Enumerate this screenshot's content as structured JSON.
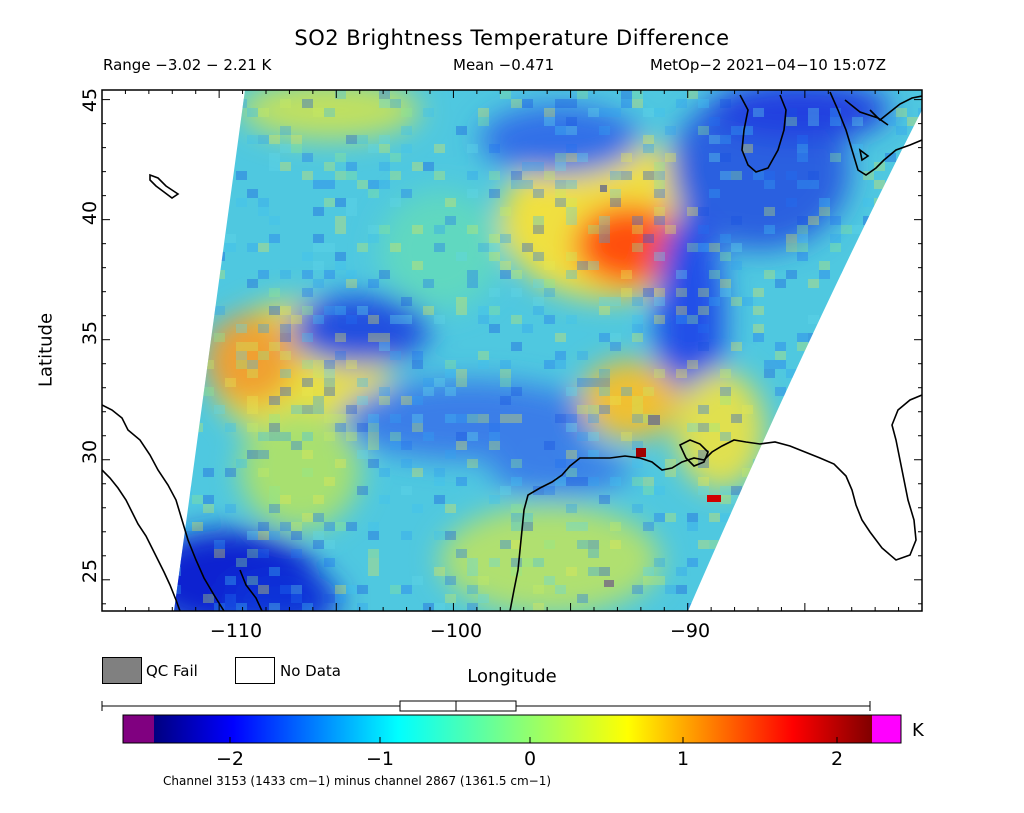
{
  "title": "SO2 Brightness Temperature Difference",
  "stats": {
    "range": "Range −3.02 − 2.21 K",
    "mean": "Mean −0.471",
    "satellite": "MetOp−2 2021−04−10 15:07Z"
  },
  "axes": {
    "xlabel": "Longitude",
    "ylabel": "Latitude",
    "xticks": [
      "−110",
      "−100",
      "−90"
    ],
    "yticks": [
      "45",
      "40",
      "35",
      "30",
      "25"
    ],
    "xrange": [
      -115,
      -80
    ],
    "yrange": [
      23.3,
      45
    ]
  },
  "legend": {
    "qc_fail": "QC Fail",
    "no_data": "No Data",
    "qc_color": "#808080",
    "nodata_color": "#ffffff"
  },
  "colorbar": {
    "unit": "K",
    "range": [
      -2.6,
      2.2
    ],
    "ticks": [
      "−2",
      "−1",
      "0",
      "1",
      "2"
    ],
    "tick_values": [
      -2,
      -1,
      0,
      1,
      2
    ],
    "box_whisker": {
      "min": -3.02,
      "q1": -0.8,
      "median": -0.471,
      "q3": -0.1,
      "max": 2.21
    },
    "underflow_color": "#800080",
    "overflow_color": "#ff00ff",
    "footnote": "Channel 3153 (1433 cm−1) minus channel 2867 (1361.5 cm−1)"
  },
  "map_features": {
    "swath_colormap": "jet",
    "high_region": "orange/red anomaly near 37–39N, 95–92W",
    "low_region": "blue anomaly near 34–35N, 105–103W"
  }
}
